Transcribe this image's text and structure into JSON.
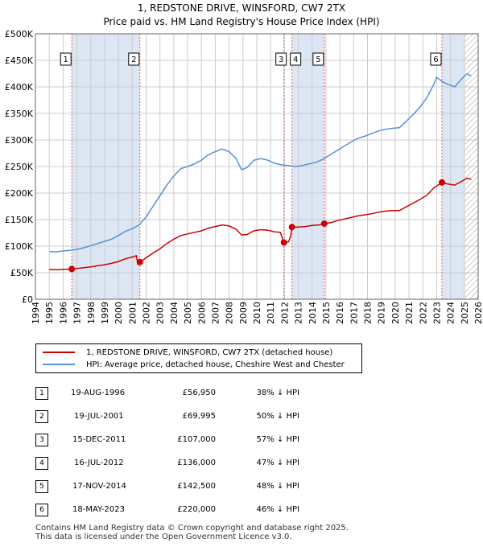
{
  "title_line1": "1, REDSTONE DRIVE, WINSFORD, CW7 2TX",
  "title_line2": "Price paid vs. HM Land Registry's House Price Index (HPI)",
  "colors": {
    "property": "#cc0000",
    "hpi": "#5b8fd6",
    "shade": "#dde6f5",
    "marker_line": "#e06060",
    "grid": "#cccccc",
    "hatch": "#999999"
  },
  "legend": {
    "property_label": "1, REDSTONE DRIVE, WINSFORD, CW7 2TX (detached house)",
    "hpi_label": "HPI: Average price, detached house, Cheshire West and Chester"
  },
  "chart_data": {
    "type": "line",
    "xlim": [
      1994,
      2026
    ],
    "ylim": [
      0,
      500000
    ],
    "y_ticks": [
      {
        "value": 0,
        "label": "£0"
      },
      {
        "value": 50000,
        "label": "£50K"
      },
      {
        "value": 100000,
        "label": "£100K"
      },
      {
        "value": 150000,
        "label": "£150K"
      },
      {
        "value": 200000,
        "label": "£200K"
      },
      {
        "value": 250000,
        "label": "£250K"
      },
      {
        "value": 300000,
        "label": "£300K"
      },
      {
        "value": 350000,
        "label": "£350K"
      },
      {
        "value": 400000,
        "label": "£400K"
      },
      {
        "value": 450000,
        "label": "£450K"
      },
      {
        "value": 500000,
        "label": "£500K"
      }
    ],
    "x_ticks": [
      "1994",
      "1995",
      "1996",
      "1997",
      "1998",
      "1999",
      "2000",
      "2001",
      "2002",
      "2003",
      "2004",
      "2005",
      "2006",
      "2007",
      "2008",
      "2009",
      "2010",
      "2011",
      "2012",
      "2013",
      "2014",
      "2015",
      "2016",
      "2017",
      "2018",
      "2019",
      "2020",
      "2021",
      "2022",
      "2023",
      "2024",
      "2025",
      "2026"
    ],
    "forecast_from": 2025.05,
    "series": [
      {
        "name": "HPI: Average price, detached house, Cheshire West and Chester",
        "color": "#5b8fd6",
        "points": [
          [
            1995.0,
            90000
          ],
          [
            1995.5,
            89000
          ],
          [
            1996.0,
            91000
          ],
          [
            1996.5,
            92000
          ],
          [
            1997.0,
            94000
          ],
          [
            1997.5,
            97000
          ],
          [
            1998.0,
            101000
          ],
          [
            1998.5,
            105000
          ],
          [
            1999.0,
            109000
          ],
          [
            1999.5,
            113000
          ],
          [
            2000.0,
            120000
          ],
          [
            2000.5,
            128000
          ],
          [
            2001.0,
            133000
          ],
          [
            2001.5,
            140000
          ],
          [
            2002.0,
            155000
          ],
          [
            2002.5,
            175000
          ],
          [
            2003.0,
            195000
          ],
          [
            2003.5,
            215000
          ],
          [
            2004.0,
            232000
          ],
          [
            2004.5,
            246000
          ],
          [
            2005.0,
            250000
          ],
          [
            2005.5,
            255000
          ],
          [
            2006.0,
            262000
          ],
          [
            2006.5,
            272000
          ],
          [
            2007.0,
            278000
          ],
          [
            2007.5,
            283000
          ],
          [
            2008.0,
            278000
          ],
          [
            2008.5,
            265000
          ],
          [
            2008.9,
            244000
          ],
          [
            2009.3,
            248000
          ],
          [
            2009.8,
            262000
          ],
          [
            2010.3,
            265000
          ],
          [
            2010.8,
            262000
          ],
          [
            2011.3,
            256000
          ],
          [
            2011.8,
            253000
          ],
          [
            2012.3,
            252000
          ],
          [
            2012.8,
            250000
          ],
          [
            2013.3,
            252000
          ],
          [
            2013.8,
            255000
          ],
          [
            2014.3,
            258000
          ],
          [
            2014.8,
            264000
          ],
          [
            2015.3,
            272000
          ],
          [
            2015.8,
            280000
          ],
          [
            2016.3,
            288000
          ],
          [
            2016.8,
            296000
          ],
          [
            2017.3,
            303000
          ],
          [
            2017.8,
            307000
          ],
          [
            2018.3,
            312000
          ],
          [
            2018.8,
            317000
          ],
          [
            2019.3,
            320000
          ],
          [
            2019.8,
            322000
          ],
          [
            2020.3,
            323000
          ],
          [
            2020.8,
            335000
          ],
          [
            2021.3,
            348000
          ],
          [
            2021.8,
            362000
          ],
          [
            2022.3,
            380000
          ],
          [
            2022.8,
            405000
          ],
          [
            2023.0,
            418000
          ],
          [
            2023.4,
            410000
          ],
          [
            2023.8,
            405000
          ],
          [
            2024.3,
            400000
          ],
          [
            2024.8,
            415000
          ],
          [
            2025.2,
            425000
          ],
          [
            2025.5,
            420000
          ]
        ]
      },
      {
        "name": "1, REDSTONE DRIVE, WINSFORD, CW7 2TX (detached house)",
        "color": "#cc0000",
        "points": [
          [
            1995.0,
            56000
          ],
          [
            1995.5,
            55500
          ],
          [
            1996.0,
            56000
          ],
          [
            1996.63,
            56950
          ],
          [
            1997.0,
            58000
          ],
          [
            1997.5,
            59500
          ],
          [
            1998.0,
            61000
          ],
          [
            1998.5,
            63000
          ],
          [
            1999.0,
            65000
          ],
          [
            1999.5,
            67500
          ],
          [
            2000.0,
            71000
          ],
          [
            2000.5,
            76000
          ],
          [
            2001.0,
            79500
          ],
          [
            2001.3,
            82000
          ],
          [
            2001.4,
            66000
          ],
          [
            2001.55,
            69995
          ],
          [
            2002.0,
            78000
          ],
          [
            2002.5,
            87000
          ],
          [
            2003.0,
            95000
          ],
          [
            2003.5,
            105000
          ],
          [
            2004.0,
            113000
          ],
          [
            2004.5,
            120000
          ],
          [
            2005.0,
            123000
          ],
          [
            2005.5,
            126000
          ],
          [
            2006.0,
            129000
          ],
          [
            2006.5,
            134000
          ],
          [
            2007.0,
            137000
          ],
          [
            2007.5,
            140000
          ],
          [
            2008.0,
            138000
          ],
          [
            2008.5,
            132000
          ],
          [
            2008.9,
            121000
          ],
          [
            2009.3,
            122000
          ],
          [
            2009.8,
            129000
          ],
          [
            2010.3,
            131000
          ],
          [
            2010.8,
            130000
          ],
          [
            2011.3,
            127000
          ],
          [
            2011.7,
            126000
          ],
          [
            2011.96,
            107000
          ],
          [
            2012.3,
            108000
          ],
          [
            2012.45,
            120000
          ],
          [
            2012.54,
            136000
          ],
          [
            2013.0,
            136000
          ],
          [
            2013.5,
            137000
          ],
          [
            2014.0,
            139000
          ],
          [
            2014.5,
            140000
          ],
          [
            2014.88,
            142500
          ],
          [
            2015.3,
            144000
          ],
          [
            2015.8,
            148000
          ],
          [
            2016.3,
            151000
          ],
          [
            2016.8,
            154000
          ],
          [
            2017.3,
            157000
          ],
          [
            2017.8,
            159000
          ],
          [
            2018.3,
            161000
          ],
          [
            2018.8,
            164000
          ],
          [
            2019.3,
            166000
          ],
          [
            2019.8,
            167000
          ],
          [
            2020.3,
            167000
          ],
          [
            2020.8,
            174000
          ],
          [
            2021.3,
            181000
          ],
          [
            2021.8,
            188000
          ],
          [
            2022.3,
            196000
          ],
          [
            2022.8,
            210000
          ],
          [
            2023.38,
            220000
          ],
          [
            2023.8,
            217000
          ],
          [
            2024.3,
            215000
          ],
          [
            2024.8,
            222000
          ],
          [
            2025.2,
            228000
          ],
          [
            2025.5,
            226000
          ]
        ]
      }
    ],
    "sales": [
      {
        "num": "1",
        "year": 1996.63,
        "price": 56950
      },
      {
        "num": "2",
        "year": 2001.55,
        "price": 69995
      },
      {
        "num": "3",
        "year": 2011.96,
        "price": 107000
      },
      {
        "num": "4",
        "year": 2012.54,
        "price": 136000
      },
      {
        "num": "5",
        "year": 2014.88,
        "price": 142500
      },
      {
        "num": "6",
        "year": 2023.38,
        "price": 220000
      }
    ],
    "shaded_ranges": [
      [
        1996.63,
        2001.55
      ],
      [
        2012.54,
        2014.88
      ],
      [
        2023.38,
        2025.05
      ]
    ]
  },
  "table": [
    {
      "num": "1",
      "date": "19-AUG-1996",
      "price": "£56,950",
      "hpi": "38% ↓ HPI"
    },
    {
      "num": "2",
      "date": "19-JUL-2001",
      "price": "£69,995",
      "hpi": "50% ↓ HPI"
    },
    {
      "num": "3",
      "date": "15-DEC-2011",
      "price": "£107,000",
      "hpi": "57% ↓ HPI"
    },
    {
      "num": "4",
      "date": "16-JUL-2012",
      "price": "£136,000",
      "hpi": "47% ↓ HPI"
    },
    {
      "num": "5",
      "date": "17-NOV-2014",
      "price": "£142,500",
      "hpi": "48% ↓ HPI"
    },
    {
      "num": "6",
      "date": "18-MAY-2023",
      "price": "£220,000",
      "hpi": "46% ↓ HPI"
    }
  ],
  "footer_line1": "Contains HM Land Registry data © Crown copyright and database right 2025.",
  "footer_line2": "This data is licensed under the Open Government Licence v3.0."
}
